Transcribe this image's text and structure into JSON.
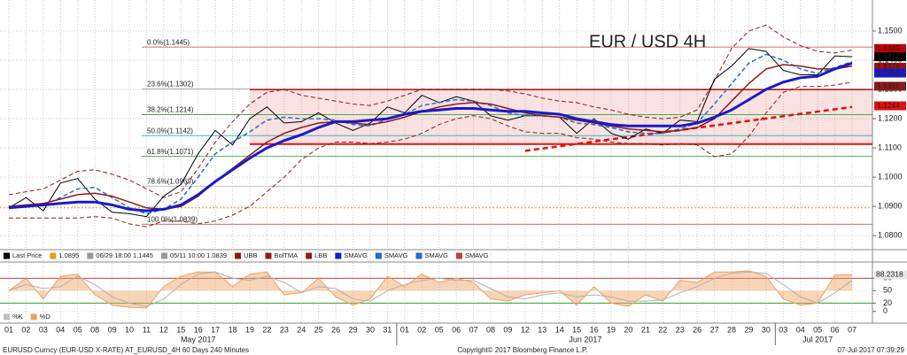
{
  "chart_data": [
    {
      "type": "line",
      "title": "EUR / USD 4H",
      "title_color": "#d01010",
      "categories": [
        "01",
        "02",
        "03",
        "04",
        "05",
        "08",
        "09",
        "10",
        "11",
        "12",
        "15",
        "16",
        "17",
        "18",
        "19",
        "22",
        "23",
        "24",
        "25",
        "26",
        "29",
        "30",
        "31",
        "01",
        "02",
        "05",
        "06",
        "07",
        "08",
        "09",
        "12",
        "13",
        "14",
        "15",
        "16",
        "19",
        "20",
        "21",
        "22",
        "23",
        "26",
        "27",
        "28",
        "29",
        "30",
        "03",
        "04",
        "05",
        "06",
        "07"
      ],
      "months": [
        "May 2017",
        "Jun 2017",
        "Jul 2017"
      ],
      "ylim": [
        1.0758,
        1.1606
      ],
      "yticks": [
        {
          "value": 1.08,
          "label": "1.0800"
        },
        {
          "value": 1.09,
          "label": "1.0900"
        },
        {
          "value": 1.1,
          "label": "1.1000"
        },
        {
          "value": 1.11,
          "label": "1.1100"
        },
        {
          "value": 1.12,
          "label": "1.1200"
        },
        {
          "value": 1.13,
          "label": "1.1300"
        },
        {
          "value": 1.14,
          "label": "1.1400"
        },
        {
          "value": 1.15,
          "label": "1.1500"
        }
      ],
      "grid": true,
      "series": [
        {
          "color": "#8b1a1a",
          "style": "dashed",
          "width": 1,
          "values": [
            1.094,
            1.095,
            1.096,
            1.099,
            1.102,
            1.1025,
            1.101,
            1.099,
            1.096,
            1.093,
            1.095,
            1.103,
            1.112,
            1.119,
            1.125,
            1.129,
            1.13,
            1.128,
            1.127,
            1.126,
            1.125,
            1.1245,
            1.126,
            1.128,
            1.13,
            1.13,
            1.13,
            1.13,
            1.13,
            1.1295,
            1.1285,
            1.127,
            1.126,
            1.1255,
            1.124,
            1.123,
            1.1215,
            1.1205,
            1.12,
            1.1205,
            1.123,
            1.133,
            1.144,
            1.15,
            1.152,
            1.148,
            1.145,
            1.143,
            1.1425,
            1.1435
          ]
        },
        {
          "color": "#8b1a1a",
          "style": "dashed",
          "width": 1,
          "values": [
            1.086,
            1.086,
            1.086,
            1.086,
            1.086,
            1.0865,
            1.086,
            1.084,
            1.083,
            1.085,
            1.085,
            1.084,
            1.085,
            1.087,
            1.09,
            1.095,
            1.1,
            1.106,
            1.11,
            1.112,
            1.112,
            1.1115,
            1.112,
            1.113,
            1.115,
            1.118,
            1.12,
            1.121,
            1.12,
            1.1175,
            1.1155,
            1.115,
            1.115,
            1.1135,
            1.113,
            1.112,
            1.1115,
            1.1115,
            1.111,
            1.1115,
            1.111,
            1.107,
            1.108,
            1.114,
            1.122,
            1.129,
            1.131,
            1.131,
            1.1315,
            1.1325
          ]
        },
        {
          "color": "#000000",
          "style": "solid",
          "width": 1,
          "values": [
            1.0895,
            1.093,
            1.0885,
            1.098,
            1.0995,
            1.0925,
            1.088,
            1.0875,
            1.0865,
            1.0935,
            1.0975,
            1.108,
            1.116,
            1.111,
            1.12,
            1.124,
            1.1185,
            1.119,
            1.122,
            1.1185,
            1.116,
            1.1185,
            1.124,
            1.122,
            1.128,
            1.1255,
            1.1275,
            1.126,
            1.121,
            1.1195,
            1.121,
            1.121,
            1.1205,
            1.115,
            1.12,
            1.115,
            1.113,
            1.1165,
            1.115,
            1.1195,
            1.119,
            1.1335,
            1.138,
            1.144,
            1.143,
            1.1365,
            1.135,
            1.135,
            1.1415,
            1.1412
          ]
        },
        {
          "color": "#1f6fd0",
          "style": "dashed",
          "width": 1.5,
          "values": [
            1.0895,
            1.0905,
            1.0905,
            1.093,
            1.096,
            1.0965,
            1.093,
            1.0895,
            1.0875,
            1.089,
            1.0925,
            1.1,
            1.108,
            1.112,
            1.1155,
            1.1195,
            1.1205,
            1.12,
            1.12,
            1.1195,
            1.118,
            1.1175,
            1.12,
            1.1215,
            1.1245,
            1.1255,
            1.1265,
            1.126,
            1.1245,
            1.122,
            1.121,
            1.121,
            1.1205,
            1.1185,
            1.118,
            1.117,
            1.1155,
            1.115,
            1.115,
            1.1165,
            1.1185,
            1.125,
            1.132,
            1.139,
            1.142,
            1.14,
            1.137,
            1.1355,
            1.1375,
            1.1395
          ]
        },
        {
          "color": "#8b1a1a",
          "style": "solid",
          "width": 1.5,
          "values": [
            1.09,
            1.0905,
            1.091,
            1.0925,
            1.094,
            1.0945,
            1.0935,
            1.0915,
            1.0895,
            1.089,
            1.09,
            1.0935,
            1.0985,
            1.103,
            1.1075,
            1.112,
            1.115,
            1.117,
            1.1185,
            1.119,
            1.1185,
            1.118,
            1.119,
            1.1205,
            1.1225,
            1.124,
            1.125,
            1.1255,
            1.125,
            1.1235,
            1.122,
            1.121,
            1.1205,
            1.1195,
            1.1185,
            1.1175,
            1.1165,
            1.116,
            1.1155,
            1.116,
            1.117,
            1.12,
            1.126,
            1.132,
            1.137,
            1.1385,
            1.138,
            1.137,
            1.137,
            1.138
          ]
        },
        {
          "color": "#1a1ac8",
          "style": "solid",
          "width": 3,
          "values": [
            1.0895,
            1.09,
            1.0905,
            1.091,
            1.0915,
            1.0915,
            1.0905,
            1.089,
            1.0885,
            1.089,
            1.0905,
            1.094,
            1.0985,
            1.1025,
            1.1065,
            1.11,
            1.1125,
            1.1145,
            1.117,
            1.119,
            1.119,
            1.1195,
            1.12,
            1.1215,
            1.1225,
            1.123,
            1.1235,
            1.1235,
            1.123,
            1.1225,
            1.1225,
            1.122,
            1.1215,
            1.12,
            1.119,
            1.118,
            1.1175,
            1.1175,
            1.1175,
            1.1175,
            1.1185,
            1.1205,
            1.123,
            1.1265,
            1.13,
            1.1325,
            1.134,
            1.1345,
            1.137,
            1.139
          ]
        }
      ],
      "fib_levels": [
        {
          "value": 1.1445,
          "label": "0.0%(1.1445)",
          "color": "#c04040"
        },
        {
          "value": 1.1302,
          "label": "23.6%(1.1302)",
          "color": "#999999"
        },
        {
          "value": 1.1214,
          "label": "38.2%(1.1214)",
          "color": "#2ca02c"
        },
        {
          "value": 1.1142,
          "label": "50.0%(1.1142)",
          "color": "#17b0c0"
        },
        {
          "value": 1.1071,
          "label": "61.8%(1.1071)",
          "color": "#2ca02c"
        },
        {
          "value": 1.0969,
          "label": "78.6%(1.0969)",
          "color": "#bbbbbb"
        },
        {
          "value": 1.0839,
          "label": "100.0%(1.0839)",
          "color": "#c04040"
        }
      ],
      "reference_line": {
        "value": 1.0895,
        "color": "#e0a020"
      },
      "channel": {
        "top": 1.13,
        "bottom": 1.1113,
        "color": "#e01010"
      },
      "trendline": [
        1.109,
        1.124
      ],
      "price_tags": [
        {
          "value": 1.144,
          "label": "1.1440",
          "color": "#c00000"
        },
        {
          "value": 1.1412,
          "label": "1.1412",
          "color": "#000000"
        },
        {
          "value": 1.1376,
          "label": "1.1376",
          "color": "#a01010"
        },
        {
          "value": 1.1356,
          "label": "1.1356",
          "color": "#1a1ac8"
        },
        {
          "value": 1.1311,
          "label": "1.1311",
          "color": "#8b1a1a"
        },
        {
          "value": 1.1244,
          "label": "1.1244",
          "color": "#e01010"
        }
      ],
      "legend": [
        {
          "label": "Last Price",
          "color": "#000000"
        },
        {
          "label": "1.0895",
          "color": "#e0a020"
        },
        {
          "label": "06/29 18:00 1.1445",
          "color": "#999999"
        },
        {
          "label": "05/11 10:00 1.0839",
          "color": "#999999"
        },
        {
          "label": "UBB",
          "color": "#8b1a1a"
        },
        {
          "label": "BolTMA",
          "color": "#8b1a1a"
        },
        {
          "label": "LBB",
          "color": "#8b1a1a"
        },
        {
          "label": "SMAVG",
          "color": "#1a1ac8"
        },
        {
          "label": "SMAVG",
          "color": "#1f6fd0"
        },
        {
          "label": "SMAVG",
          "color": "#1f6fd0"
        },
        {
          "label": "SMAVG",
          "color": "#c04040"
        }
      ]
    },
    {
      "type": "area",
      "ylim": [
        -24,
        117
      ],
      "yticks": [
        0,
        20,
        50,
        80
      ],
      "levels": [
        {
          "value": 80,
          "color": "#c04040"
        },
        {
          "value": 20,
          "color": "#2ca02c"
        }
      ],
      "series": [
        {
          "color": "#f0a060",
          "values": [
            50,
            80,
            30,
            85,
            90,
            40,
            15,
            10,
            8,
            60,
            85,
            95,
            95,
            60,
            90,
            95,
            40,
            45,
            80,
            35,
            15,
            30,
            85,
            60,
            90,
            70,
            80,
            70,
            30,
            25,
            40,
            45,
            50,
            15,
            60,
            20,
            12,
            40,
            25,
            75,
            70,
            95,
            95,
            98,
            85,
            30,
            15,
            20,
            88,
            88.2318
          ]
        },
        {
          "color": "#b0b0b0",
          "values": [
            50,
            65,
            55,
            60,
            85,
            65,
            35,
            20,
            12,
            30,
            65,
            90,
            95,
            80,
            75,
            85,
            70,
            45,
            60,
            55,
            30,
            25,
            50,
            65,
            75,
            80,
            75,
            75,
            55,
            35,
            30,
            40,
            45,
            35,
            40,
            35,
            25,
            25,
            28,
            45,
            60,
            80,
            92,
            95,
            92,
            65,
            35,
            20,
            45,
            75
          ]
        }
      ],
      "last_value": 88.2318,
      "legend": [
        {
          "label": "%K",
          "color": "#c0c0c0"
        },
        {
          "label": "%D",
          "color": "#f0a060"
        }
      ]
    }
  ],
  "footer": {
    "left": "EURUSD Curncy (EUR-USD X-RATE) AT_EURUSD_4H 60 Days 240 Minutes",
    "center": "Copyright© 2017 Bloomberg Finance L.P.",
    "right": "07-Jul-2017 07:39:29"
  }
}
